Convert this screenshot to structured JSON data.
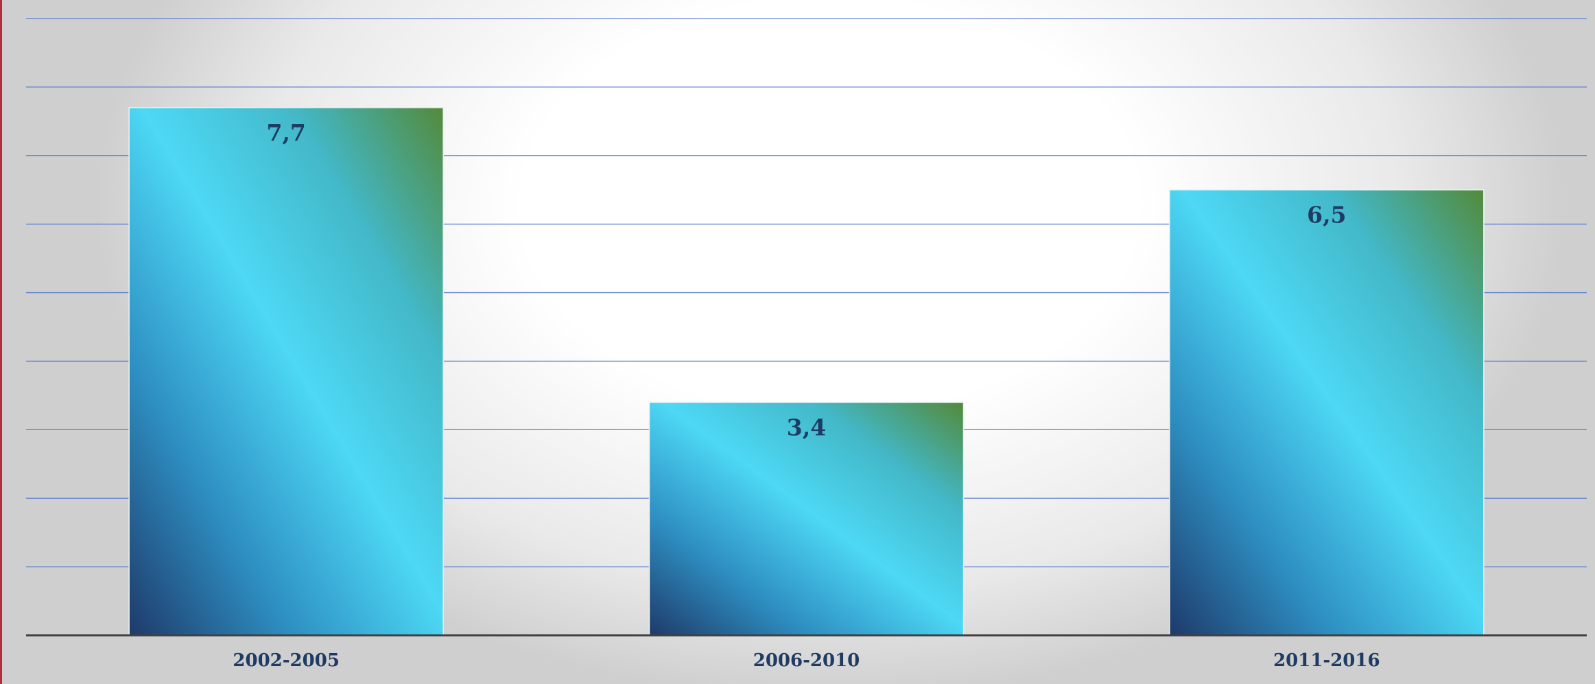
{
  "chart_data": {
    "type": "bar",
    "categories": [
      "2002-2005",
      "2006-2010",
      "2011-2016"
    ],
    "values": [
      7.7,
      3.4,
      6.5
    ],
    "data_labels": [
      "7,7",
      "3,4",
      "6,5"
    ],
    "title": "",
    "xlabel": "",
    "ylabel": "",
    "ylim": [
      0,
      9
    ],
    "grid": true,
    "legend": "none"
  },
  "colors": {
    "gridline": "#4a72c8",
    "axis": "#404040",
    "label_text": "#1f3b63",
    "bar_gradient": [
      "#1e3a6a",
      "#2e8fc2",
      "#4dd8f5",
      "#43b8c8",
      "#538a3a"
    ]
  }
}
